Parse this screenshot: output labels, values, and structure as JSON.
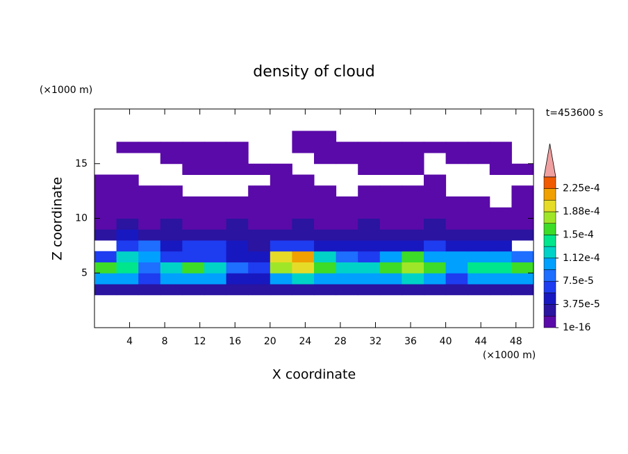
{
  "chart_data": {
    "type": "contour",
    "title": "density of cloud",
    "time_label": "t=453600 s",
    "x_label": "X coordinate",
    "y_label": "Z coordinate",
    "x_unit": "(×1000 m)",
    "y_unit": "(×1000 m)",
    "xlim": [
      0,
      50
    ],
    "ylim": [
      0,
      20
    ],
    "xticks": [
      4,
      8,
      12,
      16,
      20,
      24,
      28,
      32,
      36,
      40,
      44,
      48
    ],
    "yticks": [
      5,
      10,
      15
    ],
    "x": [
      1.25,
      3.75,
      6.25,
      8.75,
      11.25,
      13.75,
      16.25,
      18.75,
      21.25,
      23.75,
      26.25,
      28.75,
      31.25,
      33.75,
      36.25,
      38.75,
      41.25,
      43.75,
      46.25,
      48.75
    ],
    "y": [
      3.5,
      4.5,
      5.5,
      6.5,
      7.5,
      8.5,
      9.5,
      10.5,
      11.5,
      12.5,
      13.5,
      14.5,
      15.5,
      16.5,
      17.5
    ],
    "z": [
      [
        3e-05,
        3e-05,
        3e-05,
        3e-05,
        3e-05,
        3e-05,
        3e-05,
        3e-05,
        3e-05,
        3e-05,
        3e-05,
        3e-05,
        3e-05,
        3e-05,
        3e-05,
        3e-05,
        3e-05,
        3e-05,
        3e-05,
        3e-05
      ],
      [
        0.00011,
        0.00011,
        6e-05,
        0.0001,
        0.00011,
        0.00011,
        5e-05,
        4e-05,
        0.00011,
        0.00012,
        0.00011,
        0.0001,
        0.0001,
        0.00011,
        0.00012,
        0.00011,
        6e-05,
        0.00011,
        0.00011,
        0.00011
      ],
      [
        0.00015,
        0.00014,
        9e-05,
        0.00012,
        0.00015,
        0.00013,
        8e-05,
        6e-05,
        0.00017,
        0.00019,
        0.00015,
        0.00013,
        0.00012,
        0.00016,
        0.00018,
        0.00015,
        0.00011,
        0.00014,
        0.00014,
        0.00015
      ],
      [
        6e-05,
        0.00013,
        0.00011,
        6e-05,
        7e-05,
        6e-05,
        5e-05,
        4e-05,
        0.0002,
        0.00021,
        0.00012,
        8e-05,
        6e-05,
        0.00011,
        0.00015,
        0.00011,
        0.0001,
        0.00011,
        0.0001,
        8e-05
      ],
      [
        null,
        7e-05,
        8e-05,
        5e-05,
        6e-05,
        7e-05,
        4e-05,
        3e-05,
        6e-05,
        6e-05,
        5e-05,
        5e-05,
        4e-05,
        5e-05,
        5e-05,
        6e-05,
        5e-05,
        4e-05,
        4e-05,
        null
      ],
      [
        3e-05,
        4e-05,
        3e-05,
        3e-05,
        3e-05,
        3e-05,
        3e-05,
        2e-05,
        3e-05,
        3e-05,
        3e-05,
        3e-05,
        3e-05,
        3e-05,
        3e-05,
        3e-05,
        3e-05,
        3e-05,
        2e-05,
        2e-05
      ],
      [
        1.5e-05,
        2.5e-05,
        1.5e-05,
        2.5e-05,
        1.5e-05,
        1.5e-05,
        2.5e-05,
        1.5e-05,
        1.5e-05,
        2.5e-05,
        1.5e-05,
        1.5e-05,
        2.5e-05,
        1.5e-05,
        1.5e-05,
        2.5e-05,
        1.5e-05,
        1.5e-05,
        1.5e-05,
        1.5e-05
      ],
      [
        1e-05,
        1e-05,
        1e-05,
        1e-05,
        1e-05,
        1e-05,
        1e-05,
        1e-05,
        1e-05,
        1e-05,
        1e-05,
        1e-05,
        1e-05,
        1e-05,
        1e-05,
        1e-05,
        1e-05,
        1e-05,
        1e-05,
        1e-05
      ],
      [
        8e-06,
        8e-06,
        8e-06,
        8e-06,
        8e-06,
        8e-06,
        8e-06,
        8e-06,
        8e-06,
        8e-06,
        8e-06,
        8e-06,
        8e-06,
        8e-06,
        8e-06,
        8e-06,
        8e-06,
        8e-06,
        null,
        8e-06
      ],
      [
        8e-06,
        8e-06,
        8e-06,
        8e-06,
        null,
        null,
        null,
        8e-06,
        8e-06,
        8e-06,
        8e-06,
        null,
        8e-06,
        8e-06,
        8e-06,
        8e-06,
        null,
        null,
        null,
        8e-06
      ],
      [
        8e-06,
        8e-06,
        null,
        null,
        null,
        null,
        null,
        null,
        8e-06,
        8e-06,
        null,
        null,
        null,
        null,
        null,
        8e-06,
        null,
        null,
        null,
        null
      ],
      [
        null,
        null,
        null,
        null,
        8e-06,
        8e-06,
        8e-06,
        8e-06,
        8e-06,
        null,
        null,
        null,
        8e-06,
        8e-06,
        8e-06,
        null,
        null,
        null,
        8e-06,
        8e-06
      ],
      [
        null,
        null,
        null,
        8e-06,
        8e-06,
        8e-06,
        8e-06,
        null,
        null,
        null,
        8e-06,
        8e-06,
        8e-06,
        8e-06,
        8e-06,
        null,
        8e-06,
        8e-06,
        8e-06,
        null
      ],
      [
        null,
        8e-06,
        8e-06,
        8e-06,
        8e-06,
        8e-06,
        8e-06,
        null,
        null,
        8e-06,
        8e-06,
        8e-06,
        8e-06,
        8e-06,
        8e-06,
        8e-06,
        8e-06,
        8e-06,
        8e-06,
        null
      ],
      [
        null,
        null,
        null,
        null,
        null,
        null,
        null,
        null,
        null,
        8e-06,
        8e-06,
        null,
        null,
        null,
        null,
        null,
        null,
        null,
        null,
        null
      ]
    ],
    "levels": [
      1e-16,
      1.875e-05,
      3.75e-05,
      5.625e-05,
      7.5e-05,
      9.375e-05,
      0.0001125,
      0.00013125,
      0.00015,
      0.00016875,
      0.0001875,
      0.00020625,
      0.000225,
      0.00024375
    ],
    "colors": [
      "#5a0aa8",
      "#2a14a0",
      "#1818c0",
      "#1e3cf0",
      "#1e6eff",
      "#00a0ff",
      "#00d2c8",
      "#00e68c",
      "#3cdc28",
      "#a0e628",
      "#e6dc28",
      "#f0a000",
      "#f05a00",
      "#f0a0a0"
    ],
    "cticks": [
      1e-16,
      {
        "value": 3.75e-05,
        "label": "3.75e-5"
      },
      {
        "value": 7.5e-05,
        "label": "7.5e-5"
      },
      {
        "value": 0.0001125,
        "label": "1.12e-4"
      },
      {
        "value": 0.00015,
        "label": "1.5e-4"
      },
      {
        "value": 0.0001875,
        "label": "1.88e-4"
      },
      {
        "value": 0.000225,
        "label": "2.25e-4"
      }
    ]
  }
}
